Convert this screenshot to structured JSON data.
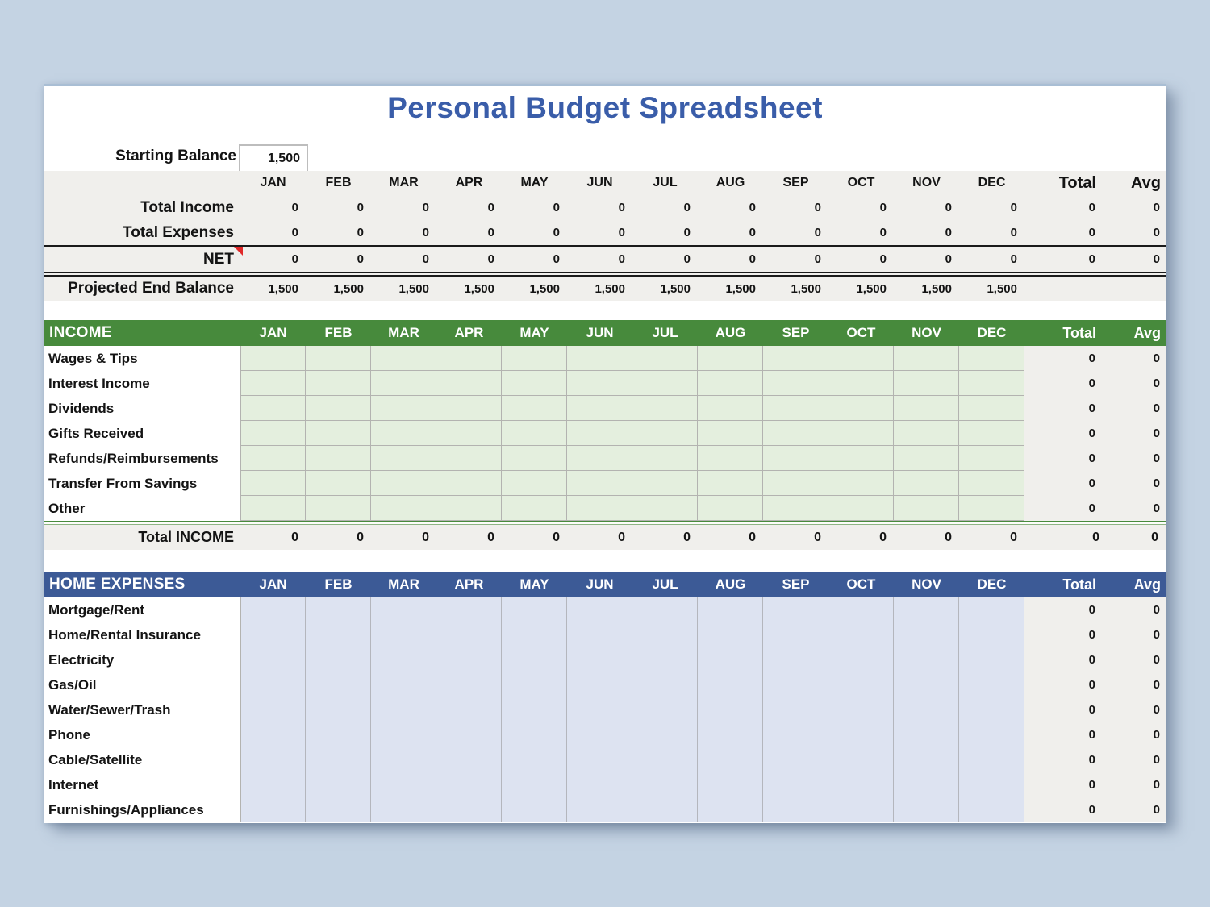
{
  "title": "Personal Budget Spreadsheet",
  "starting_balance": {
    "label": "Starting Balance",
    "value": "1,500"
  },
  "columns": {
    "months": [
      "JAN",
      "FEB",
      "MAR",
      "APR",
      "MAY",
      "JUN",
      "JUL",
      "AUG",
      "SEP",
      "OCT",
      "NOV",
      "DEC"
    ],
    "total": "Total",
    "avg": "Avg"
  },
  "summary": {
    "rows": [
      {
        "label": "Total Income",
        "values": [
          "0",
          "0",
          "0",
          "0",
          "0",
          "0",
          "0",
          "0",
          "0",
          "0",
          "0",
          "0"
        ],
        "total": "0",
        "avg": "0",
        "note": false
      },
      {
        "label": "Total Expenses",
        "values": [
          "0",
          "0",
          "0",
          "0",
          "0",
          "0",
          "0",
          "0",
          "0",
          "0",
          "0",
          "0"
        ],
        "total": "0",
        "avg": "0",
        "note": false
      },
      {
        "label": "NET",
        "values": [
          "0",
          "0",
          "0",
          "0",
          "0",
          "0",
          "0",
          "0",
          "0",
          "0",
          "0",
          "0"
        ],
        "total": "0",
        "avg": "0",
        "note": true
      }
    ],
    "projected": {
      "label": "Projected End Balance",
      "values": [
        "1,500",
        "1,500",
        "1,500",
        "1,500",
        "1,500",
        "1,500",
        "1,500",
        "1,500",
        "1,500",
        "1,500",
        "1,500",
        "1,500"
      ],
      "total": "",
      "avg": ""
    }
  },
  "income": {
    "header": "INCOME",
    "rows": [
      {
        "label": "Wages & Tips",
        "total": "0",
        "avg": "0"
      },
      {
        "label": "Interest Income",
        "total": "0",
        "avg": "0"
      },
      {
        "label": "Dividends",
        "total": "0",
        "avg": "0"
      },
      {
        "label": "Gifts Received",
        "total": "0",
        "avg": "0"
      },
      {
        "label": "Refunds/Reimbursements",
        "total": "0",
        "avg": "0"
      },
      {
        "label": "Transfer From Savings",
        "total": "0",
        "avg": "0"
      },
      {
        "label": "Other",
        "total": "0",
        "avg": "0"
      }
    ],
    "total_row": {
      "label": "Total INCOME",
      "values": [
        "0",
        "0",
        "0",
        "0",
        "0",
        "0",
        "0",
        "0",
        "0",
        "0",
        "0",
        "0"
      ],
      "total": "0",
      "avg": "0"
    }
  },
  "home_expenses": {
    "header": "HOME EXPENSES",
    "rows": [
      {
        "label": "Mortgage/Rent",
        "total": "0",
        "avg": "0"
      },
      {
        "label": "Home/Rental Insurance",
        "total": "0",
        "avg": "0"
      },
      {
        "label": "Electricity",
        "total": "0",
        "avg": "0"
      },
      {
        "label": "Gas/Oil",
        "total": "0",
        "avg": "0"
      },
      {
        "label": "Water/Sewer/Trash",
        "total": "0",
        "avg": "0"
      },
      {
        "label": "Phone",
        "total": "0",
        "avg": "0"
      },
      {
        "label": "Cable/Satellite",
        "total": "0",
        "avg": "0"
      },
      {
        "label": "Internet",
        "total": "0",
        "avg": "0"
      },
      {
        "label": "Furnishings/Appliances",
        "total": "0",
        "avg": "0"
      }
    ]
  },
  "colors": {
    "page_bg": "#c4d3e3",
    "title_text": "#3a5da9",
    "income_header": "#478a3c",
    "income_cell": "#e4efde",
    "expenses_header": "#3c5a96",
    "expense_cell": "#dde3f1",
    "summary_bg": "#f0efec",
    "comment_marker": "#e02828"
  }
}
